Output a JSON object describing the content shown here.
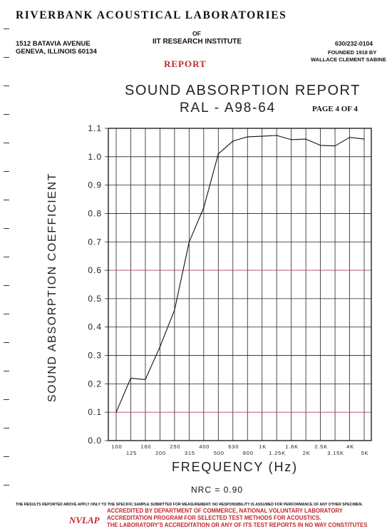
{
  "letterhead": {
    "lab_name": "RIVERBANK ACOUSTICAL LABORATORIES",
    "of": "OF",
    "institute": "IIT RESEARCH INSTITUTE",
    "address_line1": "1512 BATAVIA AVENUE",
    "address_line2": "GENEVA, ILLINOIS 60134",
    "phone": "630/232-0104",
    "founded_line1": "FOUNDED 1918 BY",
    "founded_line2": "WALLACE CLEMENT SABINE",
    "report_word": "REPORT"
  },
  "page_label": "PAGE 4 OF 4",
  "nrc": "NRC = 0.90",
  "footer": {
    "disclaimer": "THE RESULTS REPORTED ABOVE APPLY ONLY TO THE SPECIFIC SAMPLE SUBMITTED FOR MEASUREMENT. NO RESPONSIBILITY IS ASSUMED FOR PERFORMANCE OF ANY OTHER SPECIMEN.",
    "accred_line1": "ACCREDITED BY DEPARTMENT OF COMMERCE, NATIONAL VOLUNTARY LABORATORY",
    "accred_line2": "ACCREDITATION PROGRAM FOR SELECTED TEST METHODS FOR ACOUSTICS.",
    "accred_line3": "THE LABORATORY'S ACCREDITATION OR ANY OF ITS TEST REPORTS IN NO WAY CONSTITUTES",
    "nvlap": "NVLAP"
  },
  "colors": {
    "red": "#c0282d",
    "line": "#111111",
    "magenta_grid": "#b03a7a"
  },
  "chart_data": {
    "type": "line",
    "title": "SOUND ABSORPTION REPORT",
    "subtitle": "RAL - A98-64",
    "xlabel": "FREQUENCY (Hz)",
    "ylabel": "SOUND ABSORPTION COEFFICIENT",
    "x_scale": "log (1/3-octave bands)",
    "categories": [
      "100",
      "125",
      "160",
      "200",
      "250",
      "315",
      "400",
      "500",
      "630",
      "800",
      "1K",
      "1.25K",
      "1.6K",
      "2K",
      "2.5K",
      "3.15K",
      "4K",
      "5K"
    ],
    "x_tick_labels_top": [
      "100",
      "160",
      "250",
      "400",
      "630",
      "1K",
      "1.6K",
      "2.5K",
      "4K"
    ],
    "x_tick_labels_bottom": [
      "125",
      "200",
      "315",
      "500",
      "800",
      "1.25K",
      "2K",
      "3.15K",
      "5K"
    ],
    "yticks": [
      "0.0",
      "0.1",
      "0.2",
      "0.3",
      "0.4",
      "0.5",
      "0.6",
      "0.7",
      "0.8",
      "0.9",
      "1.0",
      "1.1"
    ],
    "ylim": [
      0,
      1.1
    ],
    "grid": true,
    "series": [
      {
        "values": [
          0.1,
          0.22,
          0.215,
          0.33,
          0.46,
          0.7,
          0.82,
          1.01,
          1.055,
          1.07,
          1.072,
          1.075,
          1.06,
          1.062,
          1.04,
          1.038,
          1.068,
          1.062
        ]
      }
    ]
  }
}
